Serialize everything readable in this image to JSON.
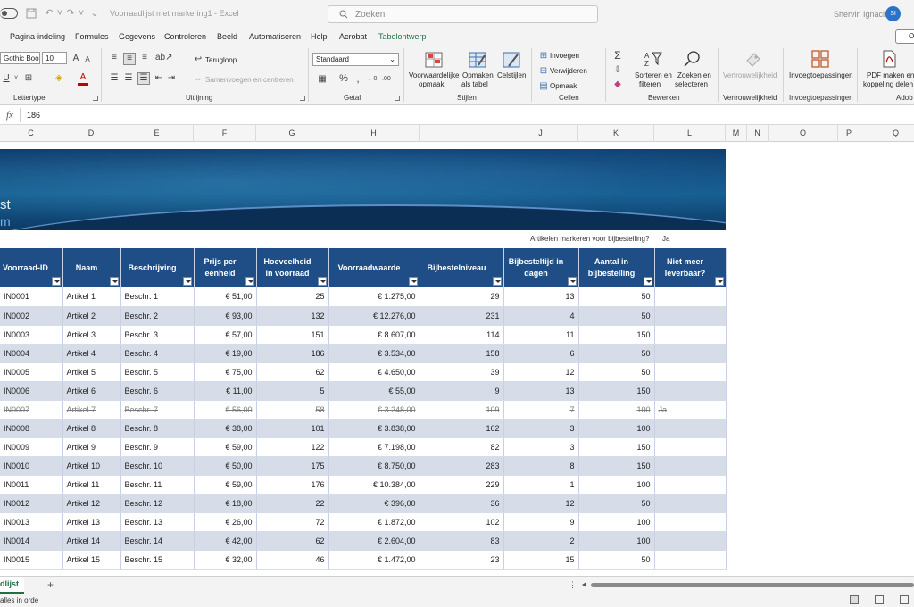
{
  "window": {
    "title": "Voorraadlijst met markering1  -  Excel",
    "search_placeholder": "Zoeken",
    "user_name": "Shervin Ignacia",
    "user_initials": "SI"
  },
  "menu_tabs": [
    "Pagina-indeling",
    "Formules",
    "Gegevens",
    "Controleren",
    "Beeld",
    "Automatiseren",
    "Help",
    "Acrobat",
    "Tabelontwerp"
  ],
  "share_label": "O",
  "ribbon": {
    "font_name": "Gothic Boo",
    "font_size": "10",
    "number_format": "Standaard",
    "wrap_text": "Terugloop",
    "merge_center": "Samenvoegen en centreren",
    "conditional_formatting": [
      "Voorwaardelijke",
      "opmaak"
    ],
    "format_as_table": [
      "Opmaken",
      "als tabel"
    ],
    "cell_styles": "Celstijlen",
    "insert": "Invoegen",
    "delete": "Verwijderen",
    "format": "Opmaak",
    "sort_filter": [
      "Sorteren en",
      "filteren"
    ],
    "find_select": [
      "Zoeken en",
      "selecteren"
    ],
    "sensitivity": "Vertrouwelijkheid",
    "addins": "Invoegtoepassingen",
    "pdf": [
      "PDF maken en",
      "koppeling delen"
    ],
    "groups": {
      "font": "Lettertype",
      "alignment": "Uitlijning",
      "number": "Getal",
      "styles": "Stijlen",
      "cells": "Cellen",
      "editing": "Bewerken",
      "sensitivity": "Vertrouwelijkheid",
      "addins": "Invoegtoepassingen",
      "adobe": "Adob"
    }
  },
  "formula_bar": {
    "fx": "fx",
    "value": "186"
  },
  "columns": [
    "C",
    "D",
    "E",
    "F",
    "G",
    "H",
    "I",
    "J",
    "K",
    "L",
    "M",
    "N",
    "O",
    "P",
    "Q"
  ],
  "banner": {
    "title_fragment": "st",
    "subtitle_fragment": "m"
  },
  "reorder_flag": {
    "label": "Artikelen markeren voor bijbestelling?",
    "value": "Ja"
  },
  "table": {
    "headers": [
      "Voorraad-ID",
      "Naam",
      "Beschrijving",
      "Prijs per eenheid",
      "Hoeveelheid in voorraad",
      "Voorraadwaarde",
      "Bijbestelniveau",
      "Bijbesteltijd in dagen",
      "Aantal in bijbestelling",
      "Niet meer leverbaar?"
    ],
    "rows": [
      [
        "IN0001",
        "Artikel 1",
        "Beschr. 1",
        "€ 51,00",
        "25",
        "€ 1.275,00",
        "29",
        "13",
        "50",
        ""
      ],
      [
        "IN0002",
        "Artikel 2",
        "Beschr. 2",
        "€ 93,00",
        "132",
        "€ 12.276,00",
        "231",
        "4",
        "50",
        ""
      ],
      [
        "IN0003",
        "Artikel 3",
        "Beschr. 3",
        "€ 57,00",
        "151",
        "€ 8.607,00",
        "114",
        "11",
        "150",
        ""
      ],
      [
        "IN0004",
        "Artikel 4",
        "Beschr. 4",
        "€ 19,00",
        "186",
        "€ 3.534,00",
        "158",
        "6",
        "50",
        ""
      ],
      [
        "IN0005",
        "Artikel 5",
        "Beschr. 5",
        "€ 75,00",
        "62",
        "€ 4.650,00",
        "39",
        "12",
        "50",
        ""
      ],
      [
        "IN0006",
        "Artikel 6",
        "Beschr. 6",
        "€ 11,00",
        "5",
        "€ 55,00",
        "9",
        "13",
        "150",
        ""
      ],
      [
        "IN0007",
        "Artikel 7",
        "Beschr. 7",
        "€ 56,00",
        "58",
        "€ 3.248,00",
        "109",
        "7",
        "100",
        "Ja"
      ],
      [
        "IN0008",
        "Artikel 8",
        "Beschr. 8",
        "€ 38,00",
        "101",
        "€ 3.838,00",
        "162",
        "3",
        "100",
        ""
      ],
      [
        "IN0009",
        "Artikel 9",
        "Beschr. 9",
        "€ 59,00",
        "122",
        "€ 7.198,00",
        "82",
        "3",
        "150",
        ""
      ],
      [
        "IN0010",
        "Artikel 10",
        "Beschr. 10",
        "€ 50,00",
        "175",
        "€ 8.750,00",
        "283",
        "8",
        "150",
        ""
      ],
      [
        "IN0011",
        "Artikel 11",
        "Beschr. 11",
        "€ 59,00",
        "176",
        "€ 10.384,00",
        "229",
        "1",
        "100",
        ""
      ],
      [
        "IN0012",
        "Artikel 12",
        "Beschr. 12",
        "€ 18,00",
        "22",
        "€ 396,00",
        "36",
        "12",
        "50",
        ""
      ],
      [
        "IN0013",
        "Artikel 13",
        "Beschr. 13",
        "€ 26,00",
        "72",
        "€ 1.872,00",
        "102",
        "9",
        "100",
        ""
      ],
      [
        "IN0014",
        "Artikel 14",
        "Beschr. 14",
        "€ 42,00",
        "62",
        "€ 2.604,00",
        "83",
        "2",
        "100",
        ""
      ],
      [
        "IN0015",
        "Artikel 15",
        "Beschr. 15",
        "€ 32,00",
        "46",
        "€ 1.472,00",
        "23",
        "15",
        "50",
        ""
      ]
    ],
    "struck_row_index": 6
  },
  "sheet_tab": "dlijst",
  "status": "alles in orde"
}
